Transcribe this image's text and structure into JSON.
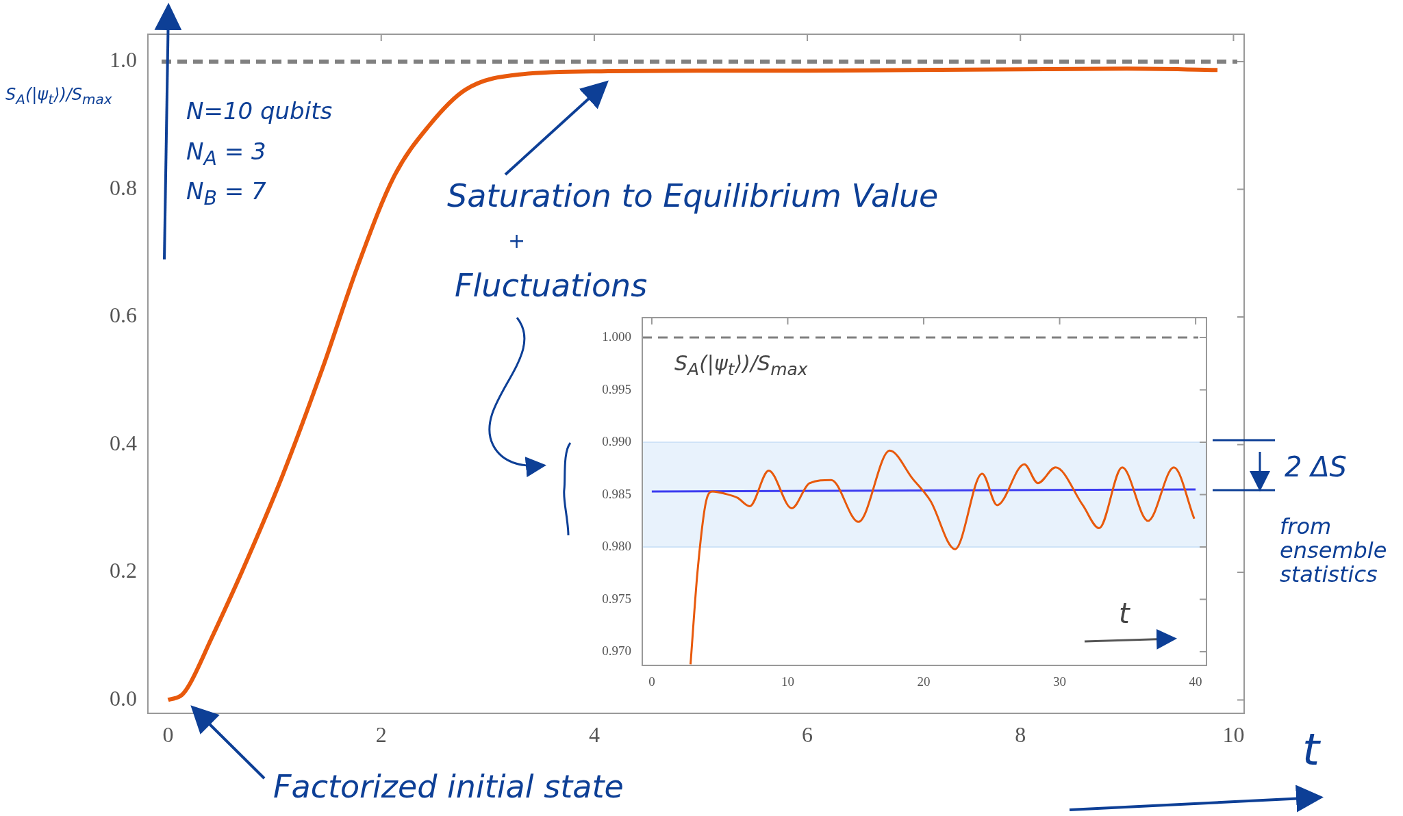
{
  "chart_data": [
    {
      "type": "line",
      "xlabel": "t",
      "ylabel": "S$_{A}$(|ψ$_{t}$⟩)/S$_{max}$",
      "x": [
        0,
        0.13,
        0.2,
        0.4,
        0.69,
        1.07,
        1.45,
        1.78,
        2.12,
        2.45,
        2.79,
        3.3,
        4.13,
        5,
        6,
        7,
        8,
        9,
        9.85
      ],
      "series": [
        {
          "color": "#e8590c",
          "values": [
            0,
            0.008,
            0.024,
            0.094,
            0.2,
            0.35,
            0.52,
            0.68,
            0.82,
            0.9,
            0.956,
            0.98,
            0.985,
            0.986,
            0.986,
            0.987,
            0.988,
            0.989,
            0.987
          ]
        }
      ],
      "xlim": [
        -0.19,
        10.1
      ],
      "ylim": [
        -0.021,
        1.043
      ],
      "xticks": [
        0,
        2,
        4,
        6,
        8,
        10
      ],
      "yticks": [
        {
          "value": 0,
          "label": "0.0"
        },
        {
          "value": 0.2,
          "label": "0.2"
        },
        {
          "value": 0.4,
          "label": "0.4"
        },
        {
          "value": 0.6,
          "label": "0.6"
        },
        {
          "value": 0.8,
          "label": "0.8"
        },
        {
          "value": 1,
          "label": "1.0"
        }
      ],
      "ref_lines": [
        {
          "axis": "y",
          "value": 1,
          "color": "#808080",
          "line_style": "dashed"
        }
      ],
      "annotations": [
        "N=10 qubits",
        "N$_{A}$ = 3",
        "N$_{B}$ = 7",
        "Saturation to Equilibrium Value",
        "+",
        "Fluctuations",
        "Factorized initial state"
      ]
    },
    {
      "type": "line",
      "xlabel": "t",
      "ylabel": "S$_{A}$(|ψ$_{t}$⟩)/S$_{max}$",
      "series": [
        {
          "color": "#e8590c",
          "x": [
            2.85,
            3.36,
            4.0,
            4.48,
            5.34,
            6.3,
            7.2,
            8.6,
            10.3,
            11.6,
            13.2,
            15.2,
            17.5,
            19.2,
            20.5,
            22.3,
            24.3,
            25.4,
            27.4,
            28.4,
            29.7,
            31.7,
            32.9,
            34.6,
            36.5,
            38.4,
            39.9
          ],
          "values": [
            0.9688,
            0.9776,
            0.9844,
            0.9853,
            0.9851,
            0.9847,
            0.9839,
            0.9873,
            0.9837,
            0.9861,
            0.9864,
            0.9824,
            0.9892,
            0.9865,
            0.9844,
            0.9798,
            0.987,
            0.984,
            0.9879,
            0.9861,
            0.9876,
            0.984,
            0.9818,
            0.9876,
            0.9825,
            0.9876,
            0.9827
          ]
        },
        {
          "color": "#3b3bf0",
          "x": [
            0,
            40
          ],
          "values": [
            0.9853,
            0.9855
          ]
        }
      ],
      "xlim": [
        -0.7,
        40.8
      ],
      "ylim": [
        0.9687,
        1.0019
      ],
      "xticks": [
        0,
        10,
        20,
        30,
        40
      ],
      "yticks": [
        {
          "value": 0.97,
          "label": "0.970"
        },
        {
          "value": 0.975,
          "label": "0.975"
        },
        {
          "value": 0.98,
          "label": "0.980"
        },
        {
          "value": 0.985,
          "label": "0.985"
        },
        {
          "value": 0.99,
          "label": "0.990"
        },
        {
          "value": 0.995,
          "label": "0.995"
        },
        {
          "value": 1,
          "label": "1.000"
        }
      ],
      "bands": [
        {
          "axis": "y",
          "from": 0.98,
          "to": 0.99,
          "color": "#e8f2fc"
        }
      ],
      "ref_lines": [
        {
          "axis": "y",
          "value": 1,
          "color": "#808080",
          "line_style": "dashed"
        }
      ],
      "annotations": [
        "2 ΔS",
        "from ensemble statistics"
      ]
    }
  ]
}
